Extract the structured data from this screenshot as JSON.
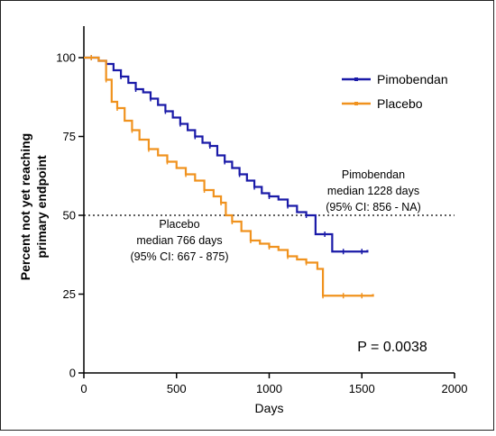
{
  "chart_data": {
    "type": "line",
    "subtype": "kaplan-meier",
    "xlabel": "Days",
    "ylabel_lines": [
      "Percent not yet reaching",
      "primary endpoint"
    ],
    "xlim": [
      0,
      2000
    ],
    "ylim": [
      0,
      110
    ],
    "xticks": [
      "0",
      "500",
      "1000",
      "1500",
      "2000"
    ],
    "xtick_values": [
      0,
      500,
      1000,
      1500,
      2000
    ],
    "yticks": [
      "0",
      "25",
      "50",
      "75",
      "100"
    ],
    "ytick_values": [
      0,
      25,
      50,
      75,
      100
    ],
    "grid": false,
    "legend_position": "top-right",
    "reference_line": {
      "y": 50,
      "style": "dotted"
    },
    "series": [
      {
        "name": "Pimobendan",
        "color": "#1a1aa8",
        "points": [
          [
            0,
            100
          ],
          [
            40,
            100
          ],
          [
            80,
            99
          ],
          [
            120,
            98
          ],
          [
            160,
            96
          ],
          [
            200,
            94
          ],
          [
            240,
            92
          ],
          [
            280,
            90
          ],
          [
            320,
            89
          ],
          [
            360,
            87
          ],
          [
            400,
            85
          ],
          [
            440,
            83
          ],
          [
            480,
            81
          ],
          [
            520,
            79
          ],
          [
            560,
            77
          ],
          [
            600,
            75
          ],
          [
            640,
            73
          ],
          [
            680,
            72
          ],
          [
            720,
            69
          ],
          [
            760,
            67
          ],
          [
            800,
            65
          ],
          [
            840,
            63
          ],
          [
            880,
            61
          ],
          [
            920,
            59
          ],
          [
            960,
            57
          ],
          [
            1000,
            56
          ],
          [
            1050,
            55
          ],
          [
            1100,
            53
          ],
          [
            1150,
            51
          ],
          [
            1200,
            50
          ],
          [
            1250,
            44
          ],
          [
            1300,
            44
          ],
          [
            1340,
            38.5
          ],
          [
            1400,
            38.5
          ],
          [
            1450,
            38.5
          ],
          [
            1500,
            38.5
          ],
          [
            1530,
            39
          ]
        ]
      },
      {
        "name": "Placebo",
        "color": "#f0921e",
        "points": [
          [
            0,
            100
          ],
          [
            40,
            100
          ],
          [
            80,
            99
          ],
          [
            120,
            93
          ],
          [
            150,
            86
          ],
          [
            180,
            84
          ],
          [
            220,
            80
          ],
          [
            260,
            77
          ],
          [
            300,
            74
          ],
          [
            350,
            71
          ],
          [
            400,
            69
          ],
          [
            450,
            67
          ],
          [
            500,
            65
          ],
          [
            550,
            63
          ],
          [
            600,
            61
          ],
          [
            650,
            58
          ],
          [
            700,
            56
          ],
          [
            740,
            54
          ],
          [
            766,
            50
          ],
          [
            800,
            48
          ],
          [
            850,
            45
          ],
          [
            900,
            42
          ],
          [
            950,
            41
          ],
          [
            1000,
            40
          ],
          [
            1050,
            39
          ],
          [
            1100,
            37
          ],
          [
            1150,
            36
          ],
          [
            1200,
            35
          ],
          [
            1260,
            33
          ],
          [
            1290,
            24.5
          ],
          [
            1350,
            24.5
          ],
          [
            1400,
            24.5
          ],
          [
            1450,
            24.5
          ],
          [
            1500,
            24.5
          ],
          [
            1560,
            25
          ]
        ]
      }
    ],
    "annotations": [
      {
        "key": "pimo",
        "lines": [
          "Pimobendan",
          "median 1228 days",
          "(95% CI: 856 - NA)"
        ]
      },
      {
        "key": "placebo",
        "lines": [
          "Placebo",
          "median 766 days",
          "(95% CI: 667 - 875)"
        ]
      },
      {
        "key": "pvalue",
        "lines": [
          "P = 0.0038"
        ]
      }
    ]
  }
}
